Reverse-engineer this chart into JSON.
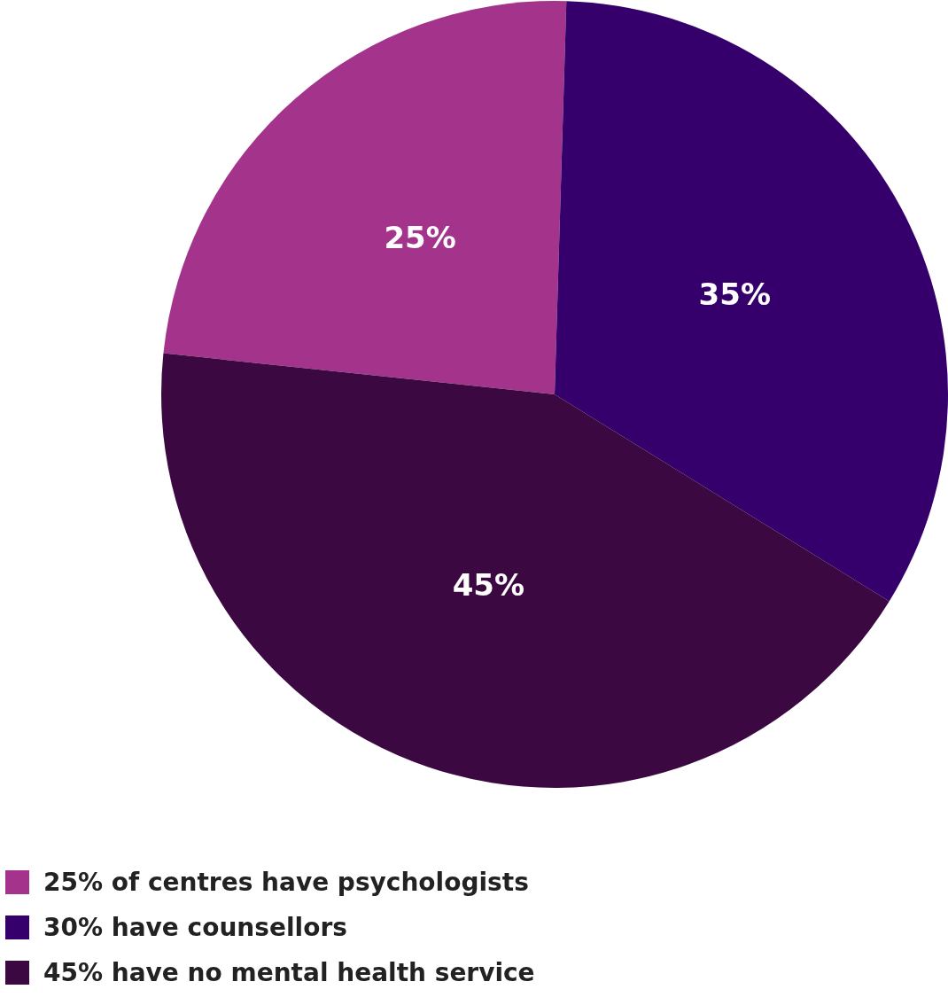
{
  "chart_data": {
    "type": "pie",
    "categories": [
      "25% of centres have psychologists",
      "30% have counsellors",
      "45% have no mental health service"
    ],
    "values": [
      25,
      35,
      45
    ],
    "colors": [
      "#a3338b",
      "#35006b",
      "#3b0841"
    ],
    "value_labels": [
      "25%",
      "35%",
      "45%"
    ],
    "legend": "bottom left"
  }
}
